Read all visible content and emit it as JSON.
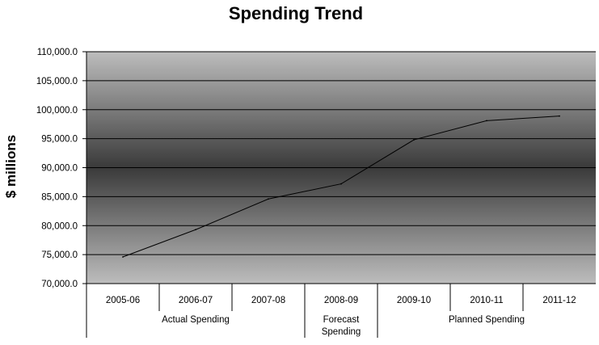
{
  "chart_data": {
    "type": "line",
    "title": "Spending Trend",
    "ylabel": "$ millions",
    "xlabel": "",
    "categories": [
      "2005-06",
      "2006-07",
      "2007-08",
      "2008-09",
      "2009-10",
      "2010-11",
      "2011-12"
    ],
    "category_groups": [
      {
        "label_lines": [
          "Actual Spending"
        ],
        "start": 0,
        "end": 2
      },
      {
        "label_lines": [
          "Forecast",
          "Spending"
        ],
        "start": 3,
        "end": 3
      },
      {
        "label_lines": [
          "Planned Spending"
        ],
        "start": 4,
        "end": 6
      }
    ],
    "series": [
      {
        "values": [
          74600,
          79300,
          84600,
          87200,
          94800,
          98100,
          98900
        ]
      }
    ],
    "ylim": [
      70000,
      110000
    ],
    "yticks": [
      70000,
      75000,
      80000,
      85000,
      90000,
      95000,
      100000,
      105000,
      110000
    ],
    "ytick_labels": [
      "70,000.0",
      "75,000.0",
      "80,000.0",
      "85,000.0",
      "90,000.0",
      "95,000.0",
      "100,000.0",
      "105,000.0",
      "110,000.0"
    ],
    "grid": true,
    "legend": "none",
    "colors": {
      "plot_edge": "#bdbdbd",
      "plot_center": "#3a3a3a",
      "line": "#000000"
    }
  }
}
